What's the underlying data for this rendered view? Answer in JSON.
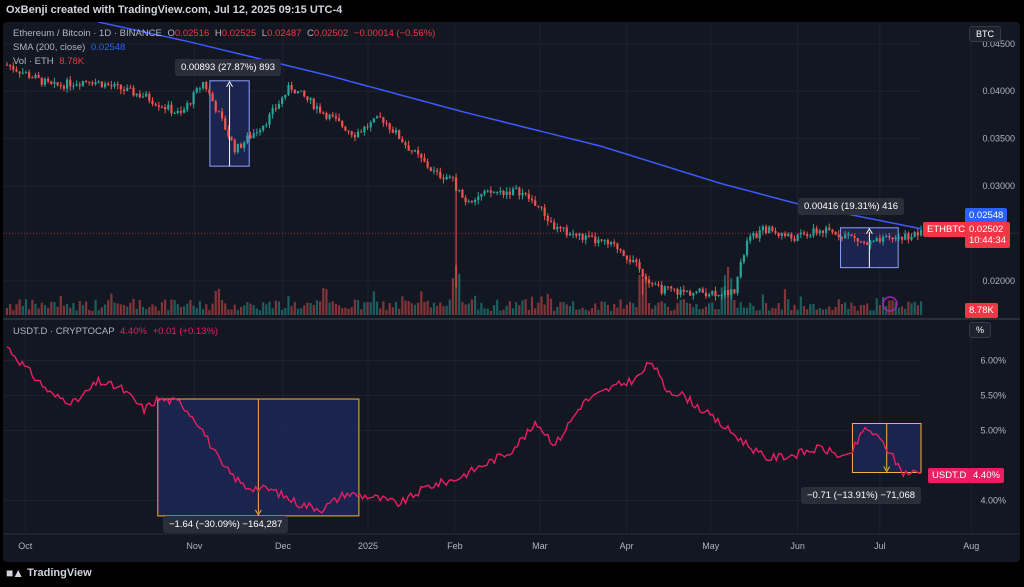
{
  "header": {
    "credit": "OxBenji created with TradingView.com, Jul 12, 2025 09:15 UTC-4"
  },
  "footer": {
    "brand": "TradingView"
  },
  "colors": {
    "bg": "#131722",
    "up": "#26a69a",
    "down": "#ef5350",
    "sma": "#3d5afe",
    "usdt": "#e91e63",
    "measure_fill": "#1f2a5c",
    "grid": "#1e222d"
  },
  "chart_data": [
    {
      "type": "candlestick",
      "legend": {
        "symbol": "Ethereum / Bitcoin · 1D · BINANCE",
        "o_label": "O",
        "o": "0.02516",
        "h_label": "H",
        "h": "0.02525",
        "l_label": "L",
        "l": "0.02487",
        "c_label": "C",
        "c": "0.02502",
        "chg": "−0.00014 (−0.56%)",
        "sma_label": "SMA (200, close)",
        "sma_value": "0.02548",
        "vol_label": "Vol · ETH",
        "vol_value": "8.78K"
      },
      "axis_currency": "BTC",
      "y_ticks": [
        "0.04500",
        "0.04000",
        "0.03500",
        "0.03000",
        "0.02000"
      ],
      "y_tick_values": [
        0.045,
        0.04,
        0.035,
        0.03,
        0.02
      ],
      "ylim": [
        0.0163,
        0.0473
      ],
      "price_tags": {
        "sma": "0.02548",
        "symbol": "ETHBTC",
        "last": "0.02502",
        "countdown": "10:44:34",
        "volume": "8.78K"
      },
      "price_anchors": [
        {
          "t": 0,
          "v": 0.0428
        },
        {
          "t": 0.05,
          "v": 0.0405
        },
        {
          "t": 0.09,
          "v": 0.0412
        },
        {
          "t": 0.15,
          "v": 0.0395
        },
        {
          "t": 0.19,
          "v": 0.0375
        },
        {
          "t": 0.215,
          "v": 0.041
        },
        {
          "t": 0.25,
          "v": 0.0338
        },
        {
          "t": 0.285,
          "v": 0.037
        },
        {
          "t": 0.31,
          "v": 0.0405
        },
        {
          "t": 0.35,
          "v": 0.0375
        },
        {
          "t": 0.38,
          "v": 0.0355
        },
        {
          "t": 0.41,
          "v": 0.0372
        },
        {
          "t": 0.44,
          "v": 0.034
        },
        {
          "t": 0.47,
          "v": 0.0312
        },
        {
          "t": 0.485,
          "v": 0.031
        },
        {
          "t": 0.5,
          "v": 0.0285
        },
        {
          "t": 0.53,
          "v": 0.0293
        },
        {
          "t": 0.56,
          "v": 0.0295
        },
        {
          "t": 0.58,
          "v": 0.028
        },
        {
          "t": 0.6,
          "v": 0.0255
        },
        {
          "t": 0.64,
          "v": 0.0243
        },
        {
          "t": 0.67,
          "v": 0.0235
        },
        {
          "t": 0.69,
          "v": 0.0214
        },
        {
          "t": 0.71,
          "v": 0.0192
        },
        {
          "t": 0.74,
          "v": 0.0188
        },
        {
          "t": 0.77,
          "v": 0.0188
        },
        {
          "t": 0.795,
          "v": 0.0188
        },
        {
          "t": 0.81,
          "v": 0.0242
        },
        {
          "t": 0.83,
          "v": 0.0255
        },
        {
          "t": 0.86,
          "v": 0.0245
        },
        {
          "t": 0.89,
          "v": 0.0253
        },
        {
          "t": 0.92,
          "v": 0.0248
        },
        {
          "t": 0.94,
          "v": 0.0238
        },
        {
          "t": 0.97,
          "v": 0.0245
        },
        {
          "t": 1.0,
          "v": 0.025
        }
      ],
      "spikes": [
        {
          "t": 0.492,
          "low": 0.0193
        },
        {
          "t": 0.695,
          "low": 0.0185
        },
        {
          "t": 0.79,
          "low": 0.0183
        }
      ],
      "sma_anchors": [
        {
          "t": 0.1,
          "v": 0.0473
        },
        {
          "t": 0.2,
          "v": 0.0452
        },
        {
          "t": 0.35,
          "v": 0.0417
        },
        {
          "t": 0.5,
          "v": 0.0378
        },
        {
          "t": 0.65,
          "v": 0.0342
        },
        {
          "t": 0.78,
          "v": 0.0303
        },
        {
          "t": 0.87,
          "v": 0.028
        },
        {
          "t": 1.0,
          "v": 0.0255
        }
      ],
      "measures": [
        {
          "label": "0.00893 (27.87%) 893",
          "t0": 0.222,
          "t1": 0.265,
          "v_low": 0.0321,
          "v_high": 0.0411
        },
        {
          "label": "0.00416 (19.31%) 416",
          "t0": 0.912,
          "t1": 0.975,
          "v_low": 0.0214,
          "v_high": 0.0256
        }
      ]
    },
    {
      "type": "line",
      "legend": {
        "symbol": "USDT.D · CRYPTOCAP",
        "value": "4.40%",
        "chg": "+0.01 (+0.13%)"
      },
      "axis_unit": "%",
      "y_ticks": [
        "6.00%",
        "5.50%",
        "5.00%",
        "4.00%"
      ],
      "y_tick_values": [
        6.0,
        5.5,
        5.0,
        4.0
      ],
      "ylim": [
        3.55,
        6.55
      ],
      "last_tag": {
        "symbol": "USDT.D",
        "value": "4.40%"
      },
      "anchors": [
        {
          "t": 0,
          "v": 6.2
        },
        {
          "t": 0.02,
          "v": 5.9
        },
        {
          "t": 0.05,
          "v": 5.5
        },
        {
          "t": 0.075,
          "v": 5.4
        },
        {
          "t": 0.1,
          "v": 5.7
        },
        {
          "t": 0.125,
          "v": 5.6
        },
        {
          "t": 0.15,
          "v": 5.3
        },
        {
          "t": 0.165,
          "v": 5.45
        },
        {
          "t": 0.19,
          "v": 5.4
        },
        {
          "t": 0.21,
          "v": 5.1
        },
        {
          "t": 0.235,
          "v": 4.5
        },
        {
          "t": 0.26,
          "v": 4.2
        },
        {
          "t": 0.29,
          "v": 4.15
        },
        {
          "t": 0.32,
          "v": 3.95
        },
        {
          "t": 0.345,
          "v": 3.88
        },
        {
          "t": 0.37,
          "v": 4.1
        },
        {
          "t": 0.4,
          "v": 4.05
        },
        {
          "t": 0.43,
          "v": 3.95
        },
        {
          "t": 0.46,
          "v": 4.2
        },
        {
          "t": 0.49,
          "v": 4.3
        },
        {
          "t": 0.52,
          "v": 4.5
        },
        {
          "t": 0.55,
          "v": 4.7
        },
        {
          "t": 0.58,
          "v": 5.1
        },
        {
          "t": 0.6,
          "v": 4.8
        },
        {
          "t": 0.63,
          "v": 5.4
        },
        {
          "t": 0.66,
          "v": 5.6
        },
        {
          "t": 0.69,
          "v": 5.75
        },
        {
          "t": 0.705,
          "v": 6.0
        },
        {
          "t": 0.72,
          "v": 5.6
        },
        {
          "t": 0.74,
          "v": 5.5
        },
        {
          "t": 0.77,
          "v": 5.2
        },
        {
          "t": 0.8,
          "v": 4.9
        },
        {
          "t": 0.83,
          "v": 4.6
        },
        {
          "t": 0.86,
          "v": 4.65
        },
        {
          "t": 0.89,
          "v": 4.75
        },
        {
          "t": 0.92,
          "v": 4.6
        },
        {
          "t": 0.94,
          "v": 5.05
        },
        {
          "t": 0.96,
          "v": 4.8
        },
        {
          "t": 0.98,
          "v": 4.4
        },
        {
          "t": 1.0,
          "v": 4.4
        }
      ],
      "measures": [
        {
          "label": "−1.64 (−30.09%) −164,287",
          "t0": 0.165,
          "t1": 0.385,
          "v_low": 3.78,
          "v_high": 5.45
        },
        {
          "label": "−0.71 (−13.91%) −71,068",
          "t0": 0.925,
          "t1": 1.0,
          "v_low": 4.4,
          "v_high": 5.1
        }
      ]
    }
  ],
  "x_axis": {
    "labels": [
      "Oct",
      "Nov",
      "Dec",
      "2025",
      "Feb",
      "Mar",
      "Apr",
      "May",
      "Jun",
      "Jul",
      "Aug"
    ],
    "positions": [
      0.02,
      0.205,
      0.302,
      0.395,
      0.49,
      0.583,
      0.678,
      0.77,
      0.865,
      0.955,
      1.055
    ]
  }
}
